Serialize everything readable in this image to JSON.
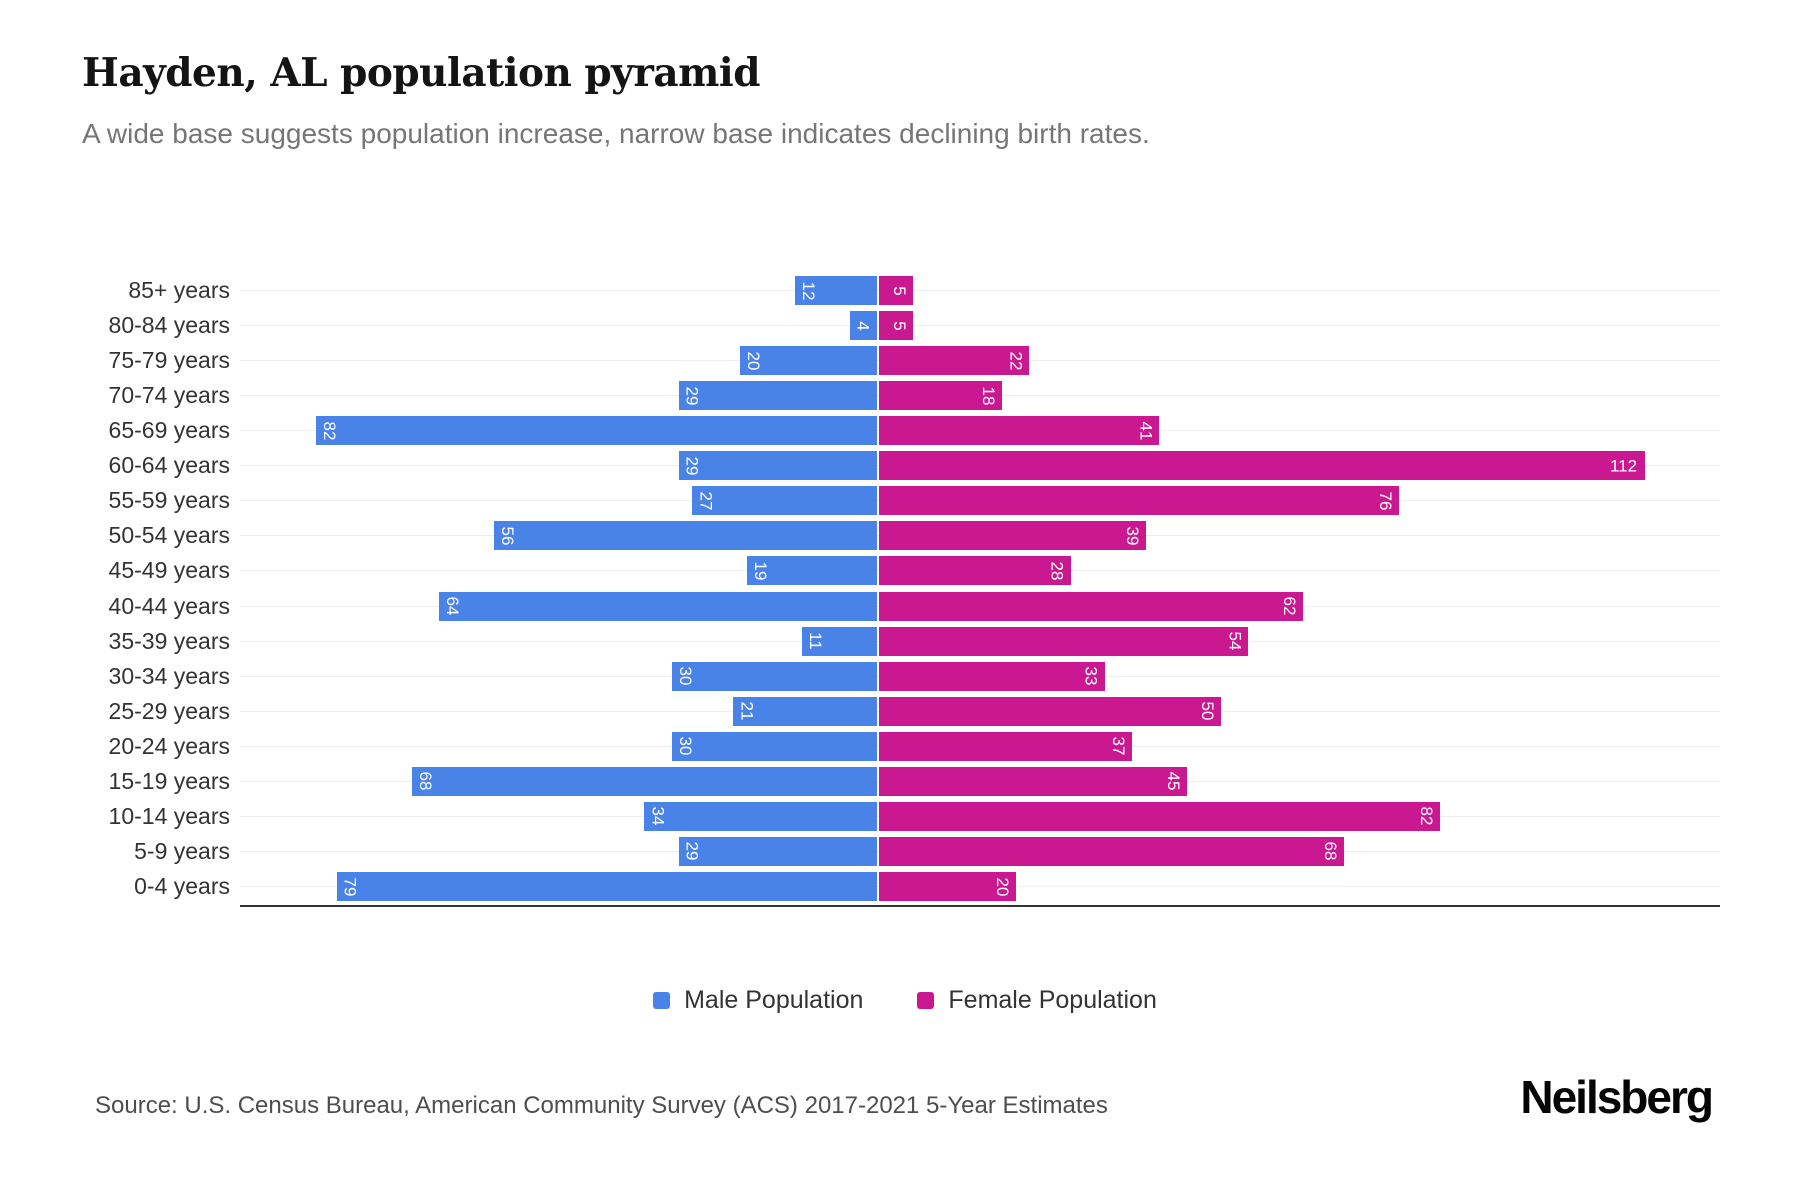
{
  "header": {
    "title": "Hayden, AL population pyramid",
    "subtitle": "A wide base suggests population increase, narrow base indicates declining birth rates."
  },
  "chart_data": {
    "type": "bar",
    "subtype": "population-pyramid",
    "orientation": "horizontal",
    "grid": true,
    "legend_position": "bottom",
    "categories": [
      "85+ years",
      "80-84 years",
      "75-79 years",
      "70-74 years",
      "65-69 years",
      "60-64 years",
      "55-59 years",
      "50-54 years",
      "45-49 years",
      "40-44 years",
      "35-39 years",
      "30-34 years",
      "25-29 years",
      "20-24 years",
      "15-19 years",
      "10-14 years",
      "5-9 years",
      "0-4 years"
    ],
    "series": [
      {
        "name": "Male Population",
        "color": "#4a83e8",
        "values": [
          12,
          4,
          20,
          29,
          82,
          29,
          27,
          56,
          19,
          64,
          11,
          30,
          21,
          30,
          68,
          34,
          29,
          79
        ]
      },
      {
        "name": "Female Population",
        "color": "#ca1990",
        "values": [
          5,
          5,
          22,
          18,
          41,
          112,
          76,
          39,
          28,
          62,
          54,
          33,
          50,
          37,
          45,
          82,
          68,
          20
        ]
      }
    ]
  },
  "footer": {
    "source": "Source: U.S. Census Bureau, American Community Survey (ACS) 2017-2021 5-Year Estimates",
    "brand": "Neilsberg"
  }
}
